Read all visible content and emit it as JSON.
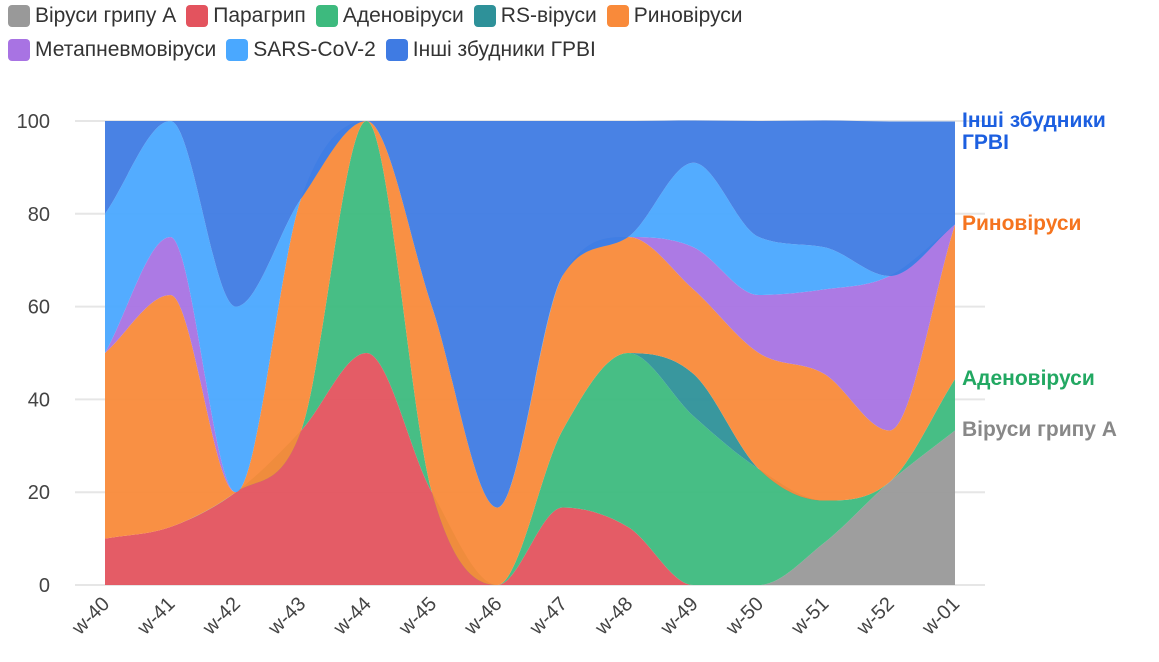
{
  "chart_data": {
    "type": "stacked_area",
    "categories": [
      "w-40",
      "w-41",
      "w-42",
      "w-43",
      "w-44",
      "w-45",
      "w-46",
      "w-47",
      "w-48",
      "w-49",
      "w-50",
      "w-51",
      "w-52",
      "w-01"
    ],
    "series": [
      {
        "name": "Віруси грипу А",
        "color": "#999999",
        "label_color": "#888888",
        "values": [
          0,
          0,
          0,
          0,
          0,
          0,
          0,
          0,
          0,
          0,
          0,
          9.1,
          22.2,
          33.3
        ]
      },
      {
        "name": "Парагрип",
        "color": "#e3535e",
        "label_color": "#d9363e",
        "values": [
          10,
          12.5,
          20,
          33.3,
          50,
          20,
          0,
          16.7,
          12.5,
          0,
          0,
          0,
          0,
          0
        ]
      },
      {
        "name": "Аденовіруси",
        "color": "#3dba7e",
        "label_color": "#22a862",
        "values": [
          0,
          0,
          0,
          0,
          50,
          0,
          0,
          16.7,
          37.5,
          36.4,
          25,
          9.1,
          0,
          11.1
        ]
      },
      {
        "name": "RS-віруси",
        "color": "#2e9199",
        "label_color": "#1e7f88",
        "values": [
          0,
          0,
          0,
          0,
          0,
          0,
          0,
          0,
          0,
          9.1,
          0,
          0,
          0,
          0
        ]
      },
      {
        "name": "Риновіруси",
        "color": "#f98a3a",
        "label_color": "#f5741f",
        "values": [
          40,
          50,
          0,
          50,
          0,
          40,
          16.7,
          33.3,
          25,
          18.2,
          25,
          27.3,
          11.1,
          33.3
        ]
      },
      {
        "name": "Метапневмовіруси",
        "color": "#a873e3",
        "label_color": "#9457dc",
        "values": [
          0,
          12.5,
          0,
          0,
          0,
          0,
          0,
          0,
          0,
          9.1,
          12.5,
          18.2,
          33.3,
          0
        ]
      },
      {
        "name": "SARS-CoV-2",
        "color": "#4aa8ff",
        "label_color": "#2d95ff",
        "values": [
          30,
          25,
          40,
          0,
          0,
          0,
          0,
          0,
          0,
          18.2,
          12.5,
          9.1,
          0,
          0
        ]
      },
      {
        "name": "Інші збудники ГРВІ",
        "color": "#3f7be3",
        "label_color": "#1c5fe0",
        "values": [
          20,
          0,
          40,
          16.7,
          0,
          40,
          83.3,
          33.3,
          25,
          9.1,
          25,
          27.3,
          33.3,
          22.2
        ]
      }
    ],
    "ylim": [
      0,
      100
    ],
    "yticks": [
      0,
      20,
      40,
      60,
      80,
      100
    ],
    "grid": true,
    "legend": "top-left"
  }
}
